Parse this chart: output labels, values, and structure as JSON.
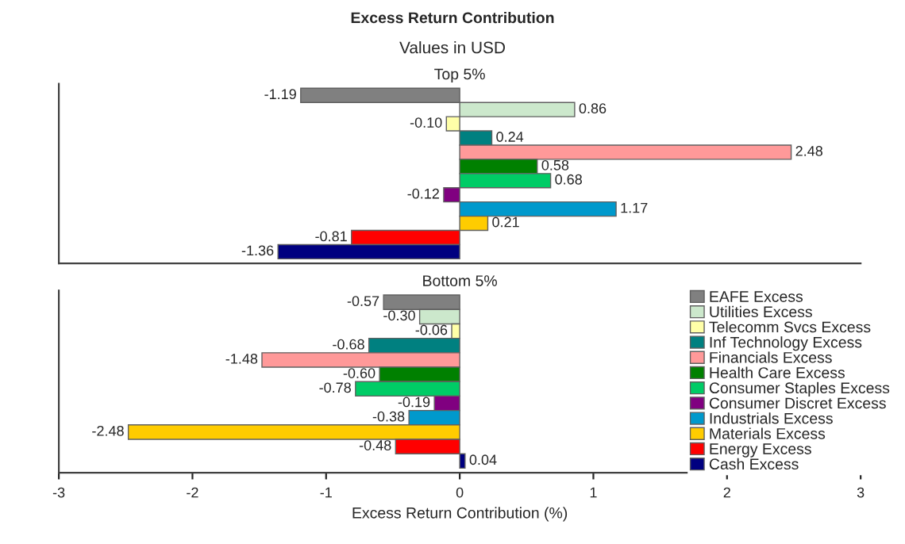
{
  "chart_data": [
    {
      "type": "bar",
      "orientation": "horizontal",
      "title": "Top 5%",
      "annotations": [
        "Excess Return Contribution",
        "Values in USD"
      ],
      "categories": [
        null
      ],
      "xlim": [
        -3,
        3
      ],
      "xticks": [
        -3,
        -2,
        -1,
        0,
        1,
        2,
        3
      ],
      "tick_labels": false,
      "grid": false,
      "data_labels": true,
      "series": [
        {
          "color": "#808080",
          "values": [
            -1.19
          ],
          "value_labels": [
            "-1.19"
          ]
        },
        {
          "color": "#cce8cc",
          "values": [
            0.86
          ],
          "value_labels": [
            "0.86"
          ]
        },
        {
          "color": "#ffffa8",
          "values": [
            -0.1
          ],
          "value_labels": [
            "-0.10"
          ]
        },
        {
          "color": "#008080",
          "values": [
            0.24
          ],
          "value_labels": [
            "0.24"
          ]
        },
        {
          "color": "#ff9999",
          "values": [
            2.48
          ],
          "value_labels": [
            "2.48"
          ]
        },
        {
          "color": "#008000",
          "values": [
            0.58
          ],
          "value_labels": [
            "0.58"
          ]
        },
        {
          "color": "#00cc66",
          "values": [
            0.68
          ],
          "value_labels": [
            "0.68"
          ]
        },
        {
          "color": "#800080",
          "values": [
            -0.12
          ],
          "value_labels": [
            "-0.12"
          ]
        },
        {
          "color": "#0099cc",
          "values": [
            1.17
          ],
          "value_labels": [
            "1.17"
          ]
        },
        {
          "color": "#ffcc00",
          "values": [
            0.21
          ],
          "value_labels": [
            "0.21"
          ]
        },
        {
          "color": "#ff0000",
          "values": [
            -0.81
          ],
          "value_labels": [
            "-0.81"
          ]
        },
        {
          "color": "#000080",
          "values": [
            -1.36
          ],
          "value_labels": [
            "-1.36"
          ]
        }
      ]
    },
    {
      "type": "bar",
      "orientation": "horizontal",
      "title": "Bottom 5%",
      "xlabel": "Excess Return Contribution (%)",
      "categories": [
        null
      ],
      "xlim": [
        -3,
        3
      ],
      "xticks": [
        -3,
        -2,
        -1,
        0,
        1,
        2,
        3
      ],
      "tick_labels": "x",
      "grid": false,
      "data_labels": true,
      "legend": "right",
      "series": [
        {
          "name": "EAFE Excess",
          "color": "#808080",
          "values": [
            -0.57
          ],
          "value_labels": [
            "-0.57"
          ]
        },
        {
          "name": "Utilities Excess",
          "color": "#cce8cc",
          "values": [
            -0.3
          ],
          "value_labels": [
            "-0.30"
          ]
        },
        {
          "name": "Telecomm Svcs Excess",
          "color": "#ffffa8",
          "values": [
            -0.06
          ],
          "value_labels": [
            "-0.06"
          ]
        },
        {
          "name": "Inf Technology Excess",
          "color": "#008080",
          "values": [
            -0.68
          ],
          "value_labels": [
            "-0.68"
          ]
        },
        {
          "name": "Financials Excess",
          "color": "#ff9999",
          "values": [
            -1.48
          ],
          "value_labels": [
            "-1.48"
          ]
        },
        {
          "name": "Health Care Excess",
          "color": "#008000",
          "values": [
            -0.6
          ],
          "value_labels": [
            "-0.60"
          ]
        },
        {
          "name": "Consumer Staples Excess",
          "color": "#00cc66",
          "values": [
            -0.78
          ],
          "value_labels": [
            "-0.78"
          ]
        },
        {
          "name": "Consumer Discret Excess",
          "color": "#800080",
          "values": [
            -0.19
          ],
          "value_labels": [
            "-0.19"
          ]
        },
        {
          "name": "Industrials Excess",
          "color": "#0099cc",
          "values": [
            -0.38
          ],
          "value_labels": [
            "-0.38"
          ]
        },
        {
          "name": "Materials Excess",
          "color": "#ffcc00",
          "values": [
            -2.48
          ],
          "value_labels": [
            "-2.48"
          ]
        },
        {
          "name": "Energy Excess",
          "color": "#ff0000",
          "values": [
            -0.48
          ],
          "value_labels": [
            "-0.48"
          ]
        },
        {
          "name": "Cash Excess",
          "color": "#000080",
          "values": [
            0.04
          ],
          "value_labels": [
            "0.04"
          ]
        }
      ]
    }
  ]
}
